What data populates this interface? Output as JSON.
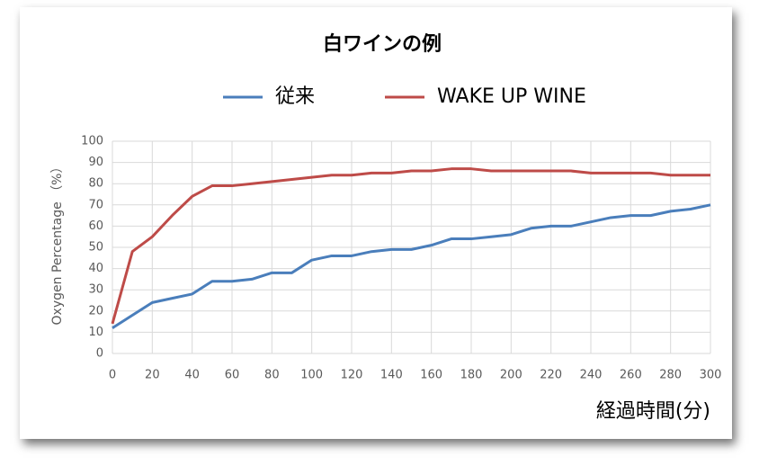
{
  "chart_data": {
    "type": "line",
    "title": "白ワインの例",
    "x_label": "経過時間(分)",
    "y_label": "Oxygen Percentage （%）",
    "x": [
      0,
      10,
      20,
      30,
      40,
      50,
      60,
      70,
      80,
      90,
      100,
      110,
      120,
      130,
      140,
      150,
      160,
      170,
      180,
      190,
      200,
      210,
      220,
      230,
      240,
      250,
      260,
      270,
      280,
      290,
      300
    ],
    "series": [
      {
        "name": "従来",
        "color": "#4a7ebb",
        "values": [
          12,
          18,
          24,
          26,
          28,
          34,
          34,
          35,
          38,
          38,
          44,
          46,
          46,
          48,
          49,
          49,
          51,
          54,
          54,
          55,
          56,
          59,
          60,
          60,
          62,
          64,
          65,
          65,
          67,
          68,
          70
        ]
      },
      {
        "name": "WAKE UP WINE",
        "color": "#be4b48",
        "values": [
          14,
          48,
          55,
          65,
          74,
          79,
          79,
          80,
          81,
          82,
          83,
          84,
          84,
          85,
          85,
          86,
          86,
          87,
          87,
          86,
          86,
          86,
          86,
          86,
          85,
          85,
          85,
          85,
          84,
          84,
          84
        ]
      }
    ],
    "xlim": [
      0,
      300
    ],
    "xticks": [
      0,
      20,
      40,
      60,
      80,
      100,
      120,
      140,
      160,
      180,
      200,
      220,
      240,
      260,
      280,
      300
    ],
    "ylim": [
      0,
      100
    ],
    "yticks": [
      0,
      10,
      20,
      30,
      40,
      50,
      60,
      70,
      80,
      90,
      100
    ],
    "grid": true,
    "legend": "top"
  }
}
